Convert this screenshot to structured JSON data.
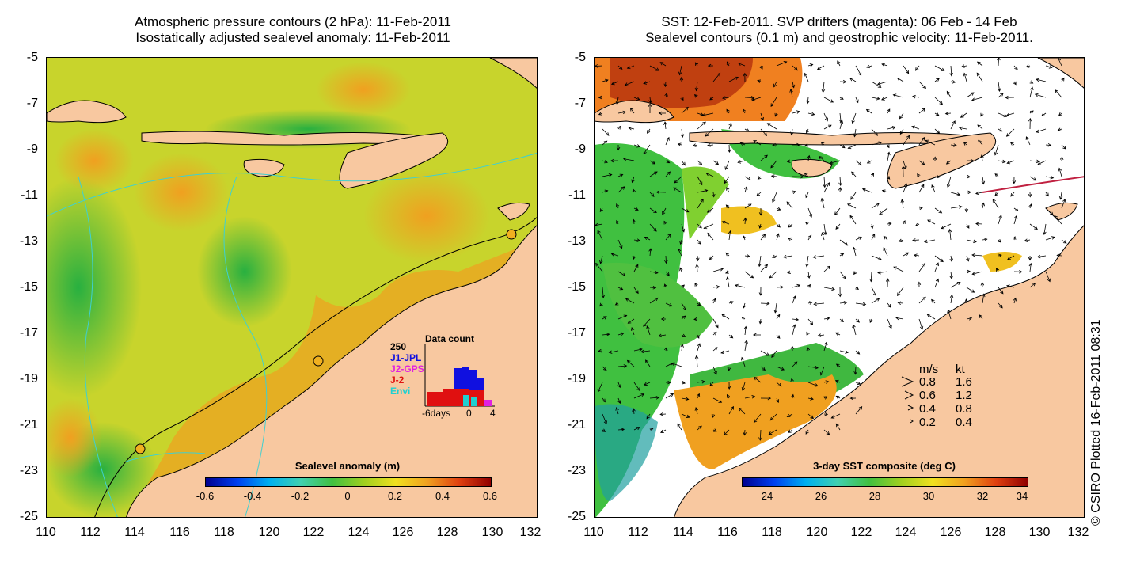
{
  "left_panel": {
    "title_line1": "Atmospheric pressure contours (2 hPa): 11-Feb-2011",
    "title_line2": "Isostatically adjusted sealevel anomaly: 11-Feb-2011",
    "colorbar_title": "Sealevel anomaly (m)",
    "colorbar_ticks": [
      "-0.6",
      "-0.4",
      "-0.2",
      "0",
      "0.2",
      "0.4",
      "0.6"
    ],
    "data_count": {
      "title": "Data count",
      "max_label": "250",
      "series": [
        {
          "name": "J1-JPL",
          "color": "#1010e0"
        },
        {
          "name": "J2-GPS",
          "color": "#e020e0"
        },
        {
          "name": "J-2",
          "color": "#e01010"
        },
        {
          "name": "Envi",
          "color": "#20d0d0"
        }
      ],
      "axis_labels": [
        "-6days",
        "0",
        "4"
      ]
    }
  },
  "right_panel": {
    "title_line1": "SST: 12-Feb-2011. SVP drifters (magenta): 06 Feb - 14 Feb",
    "title_line2": "Sealevel contours (0.1 m) and geostrophic velocity: 11-Feb-2011.",
    "colorbar_title": "3-day SST composite (deg C)",
    "colorbar_ticks": [
      "24",
      "26",
      "28",
      "30",
      "32",
      "34"
    ],
    "velocity_legend": {
      "header_ms": "m/s",
      "header_kt": "kt",
      "rows": [
        {
          "ms": "0.8",
          "kt": "1.6"
        },
        {
          "ms": "0.6",
          "kt": "1.2"
        },
        {
          "ms": "0.4",
          "kt": "0.8"
        },
        {
          "ms": "0.2",
          "kt": "0.4"
        }
      ]
    }
  },
  "axes": {
    "lat_ticks": [
      "-5",
      "-7",
      "-9",
      "-11",
      "-13",
      "-15",
      "-17",
      "-19",
      "-21",
      "-23",
      "-25"
    ],
    "lon_ticks": [
      "110",
      "112",
      "114",
      "116",
      "118",
      "120",
      "122",
      "124",
      "126",
      "128",
      "130",
      "132"
    ]
  },
  "copyright": "© CSIRO Plotted 16-Feb-2011 08:31",
  "colors": {
    "land": "#f8c8a0",
    "ocean_yellow": "#f0d020",
    "ocean_green": "#40c040",
    "ocean_orange": "#f0a020",
    "sst_warm": "#f08020",
    "sst_hot": "#c04010",
    "contour_cyan": "#40d0d0"
  }
}
